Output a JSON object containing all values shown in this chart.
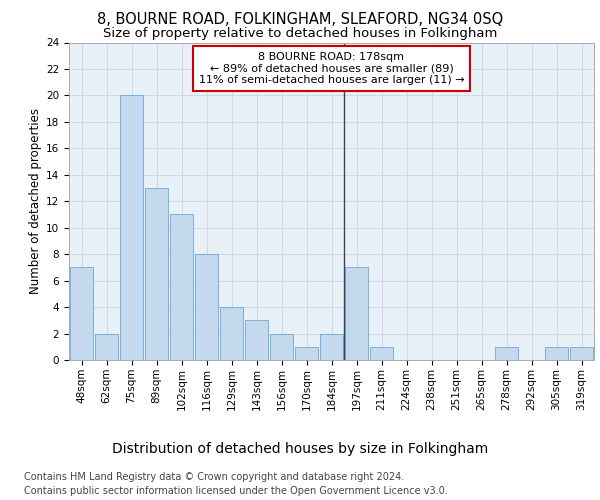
{
  "title": "8, BOURNE ROAD, FOLKINGHAM, SLEAFORD, NG34 0SQ",
  "subtitle": "Size of property relative to detached houses in Folkingham",
  "xlabel_bottom": "Distribution of detached houses by size in Folkingham",
  "ylabel": "Number of detached properties",
  "categories": [
    "48sqm",
    "62sqm",
    "75sqm",
    "89sqm",
    "102sqm",
    "116sqm",
    "129sqm",
    "143sqm",
    "156sqm",
    "170sqm",
    "184sqm",
    "197sqm",
    "211sqm",
    "224sqm",
    "238sqm",
    "251sqm",
    "265sqm",
    "278sqm",
    "292sqm",
    "305sqm",
    "319sqm"
  ],
  "values": [
    7,
    2,
    20,
    13,
    11,
    8,
    4,
    3,
    2,
    1,
    2,
    7,
    1,
    0,
    0,
    0,
    0,
    1,
    0,
    1,
    1
  ],
  "bar_color": "#c5d9ee",
  "bar_edge_color": "#6aa8d8",
  "vline_after_index": 10,
  "vline_color": "#444444",
  "annotation_box_text": "8 BOURNE ROAD: 178sqm\n← 89% of detached houses are smaller (89)\n11% of semi-detached houses are larger (11) →",
  "annotation_box_facecolor": "#ffffff",
  "annotation_box_edgecolor": "#cc0000",
  "grid_color": "#d0d8e8",
  "background_color": "#e8f0f8",
  "ylim_max": 24,
  "yticks": [
    0,
    2,
    4,
    6,
    8,
    10,
    12,
    14,
    16,
    18,
    20,
    22,
    24
  ],
  "footer_line1": "Contains HM Land Registry data © Crown copyright and database right 2024.",
  "footer_line2": "Contains public sector information licensed under the Open Government Licence v3.0.",
  "title_fontsize": 10.5,
  "subtitle_fontsize": 9.5,
  "ylabel_fontsize": 8.5,
  "xlabel_fontsize": 10,
  "tick_fontsize": 7.5,
  "annotation_fontsize": 8,
  "footer_fontsize": 7
}
